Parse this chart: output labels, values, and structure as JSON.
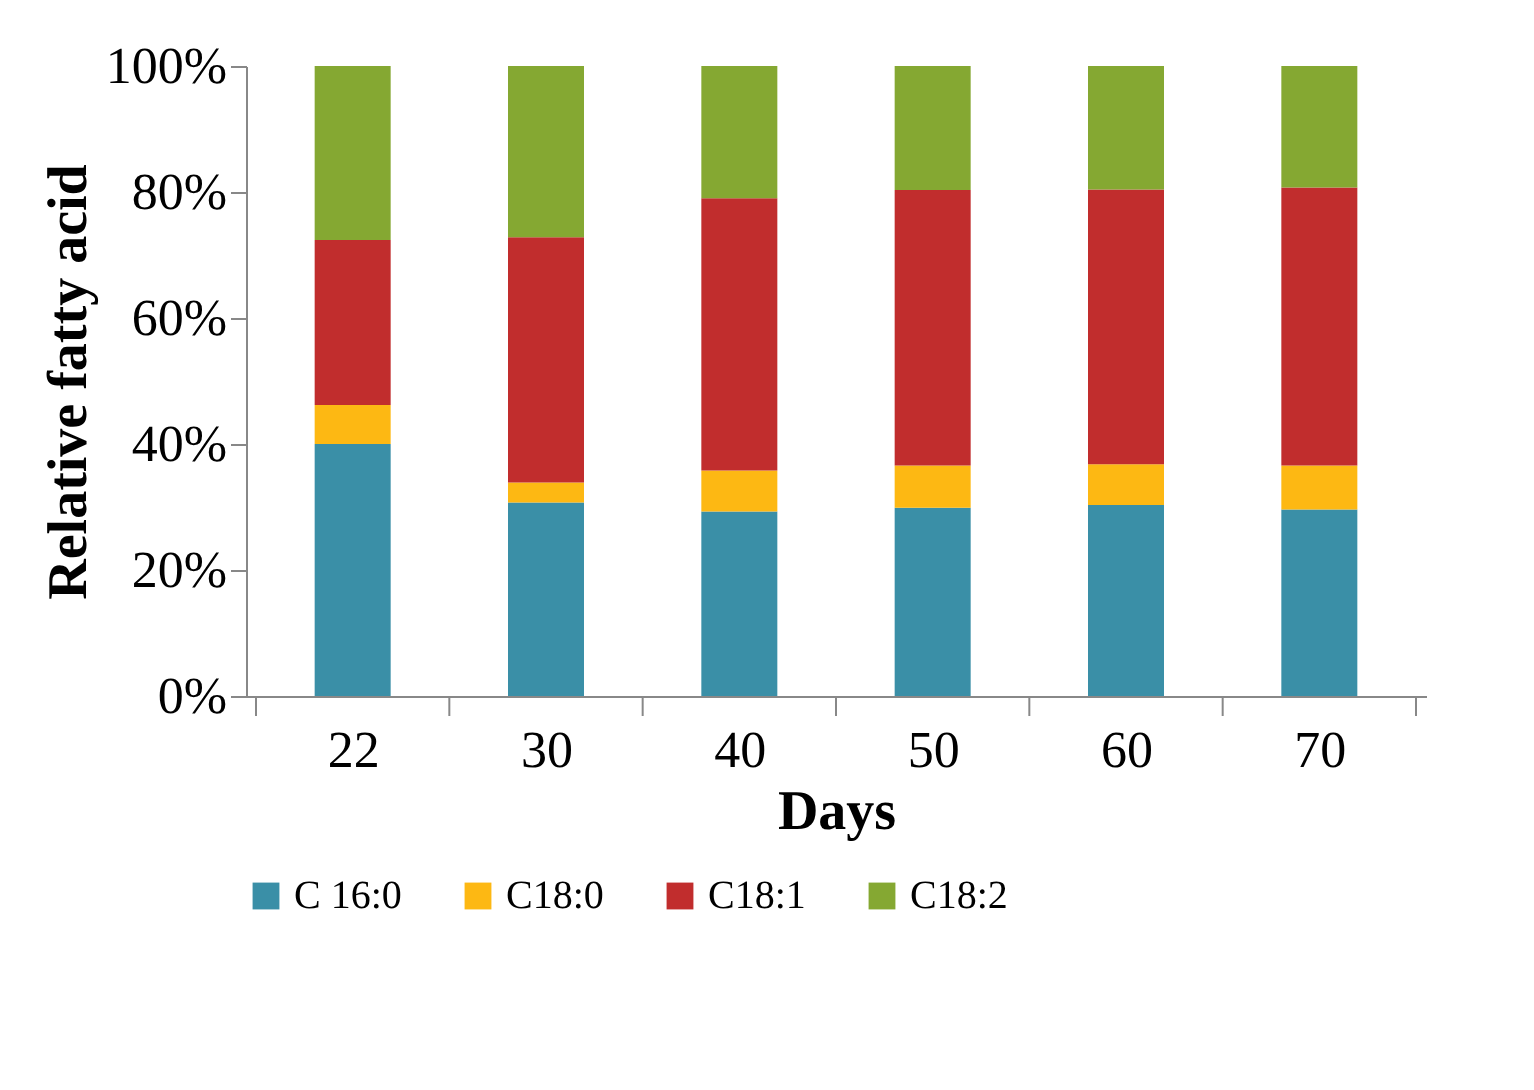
{
  "chart_data": {
    "type": "bar",
    "stacked": true,
    "xlabel": "Days",
    "ylabel": "Relative fatty acid",
    "categories": [
      "22",
      "30",
      "40",
      "50",
      "60",
      "70"
    ],
    "series": [
      {
        "name": "C 16:0",
        "color": "#3a8fa7",
        "values": [
          40.0,
          30.7,
          29.3,
          29.9,
          30.3,
          29.6
        ]
      },
      {
        "name": "C18:0",
        "color": "#fdb813",
        "values": [
          6.2,
          3.2,
          6.5,
          6.7,
          6.5,
          7.0
        ]
      },
      {
        "name": "C18:1",
        "color": "#c12d2d",
        "values": [
          26.2,
          38.9,
          43.2,
          43.7,
          43.6,
          44.1
        ]
      },
      {
        "name": "C18:2",
        "color": "#85a832",
        "values": [
          27.6,
          27.2,
          21.0,
          19.7,
          19.6,
          19.3
        ]
      }
    ],
    "ylim": [
      0,
      100
    ],
    "yticks": [
      {
        "value": 0,
        "label": "0%"
      },
      {
        "value": 20,
        "label": "20%"
      },
      {
        "value": 40,
        "label": "40%"
      },
      {
        "value": 60,
        "label": "60%"
      },
      {
        "value": 80,
        "label": "80%"
      },
      {
        "value": 100,
        "label": "100%"
      }
    ],
    "grid": false,
    "legend": "bottom"
  }
}
